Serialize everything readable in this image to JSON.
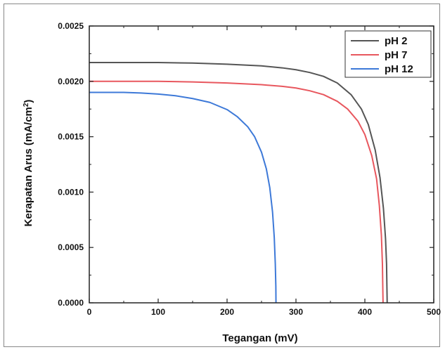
{
  "chart_data": {
    "type": "line",
    "title": "",
    "xlabel": "Tegangan (mV)",
    "ylabel_main": "Kerapatan Arus (mA/cm",
    "ylabel_sup": "2",
    "ylabel_close": ")",
    "xlim": [
      0,
      500
    ],
    "ylim": [
      0,
      0.0025
    ],
    "x_ticks": [
      0,
      100,
      200,
      300,
      400,
      500
    ],
    "x_tick_labels": [
      "0",
      "100",
      "200",
      "300",
      "400",
      "500"
    ],
    "y_ticks": [
      0,
      0.0005,
      0.001,
      0.0015,
      0.002,
      0.0025
    ],
    "y_tick_labels": [
      "0.0000",
      "0.0005",
      "0.0010",
      "0.0015",
      "0.0020",
      "0.0025"
    ],
    "grid": false,
    "legend_position": "top-right",
    "series": [
      {
        "name": "pH 2",
        "color": "#555555",
        "x": [
          0,
          50,
          100,
          150,
          200,
          250,
          280,
          300,
          320,
          340,
          360,
          380,
          395,
          405,
          415,
          422,
          427,
          430,
          431.5,
          432,
          432.4
        ],
        "y": [
          0.00217,
          0.00217,
          0.00217,
          0.002165,
          0.002155,
          0.00214,
          0.002122,
          0.002105,
          0.00208,
          0.002045,
          0.001985,
          0.00188,
          0.00175,
          0.00161,
          0.00138,
          0.00113,
          0.00085,
          0.00058,
          0.00035,
          0.00015,
          0.0
        ]
      },
      {
        "name": "pH 7",
        "color": "#e8575e",
        "x": [
          0,
          50,
          100,
          150,
          200,
          250,
          280,
          300,
          320,
          340,
          360,
          375,
          390,
          400,
          410,
          417,
          421,
          424,
          425.5,
          426,
          426.4
        ],
        "y": [
          0.002,
          0.002,
          0.002,
          0.001995,
          0.001985,
          0.00197,
          0.001955,
          0.00194,
          0.001915,
          0.00188,
          0.00182,
          0.00175,
          0.00164,
          0.00152,
          0.00133,
          0.00112,
          0.00088,
          0.00061,
          0.00035,
          0.00015,
          0.0
        ]
      },
      {
        "name": "pH 12",
        "color": "#3d79d8",
        "x": [
          0,
          25,
          50,
          75,
          100,
          125,
          150,
          175,
          200,
          215,
          230,
          240,
          250,
          257,
          262,
          266,
          268.5,
          270,
          270.8,
          271
        ],
        "y": [
          0.0019,
          0.0019,
          0.0019,
          0.001895,
          0.001885,
          0.00187,
          0.001845,
          0.00181,
          0.001745,
          0.00168,
          0.00159,
          0.0015,
          0.00136,
          0.00121,
          0.00104,
          0.00082,
          0.00059,
          0.00035,
          0.00015,
          0.0
        ]
      }
    ]
  }
}
